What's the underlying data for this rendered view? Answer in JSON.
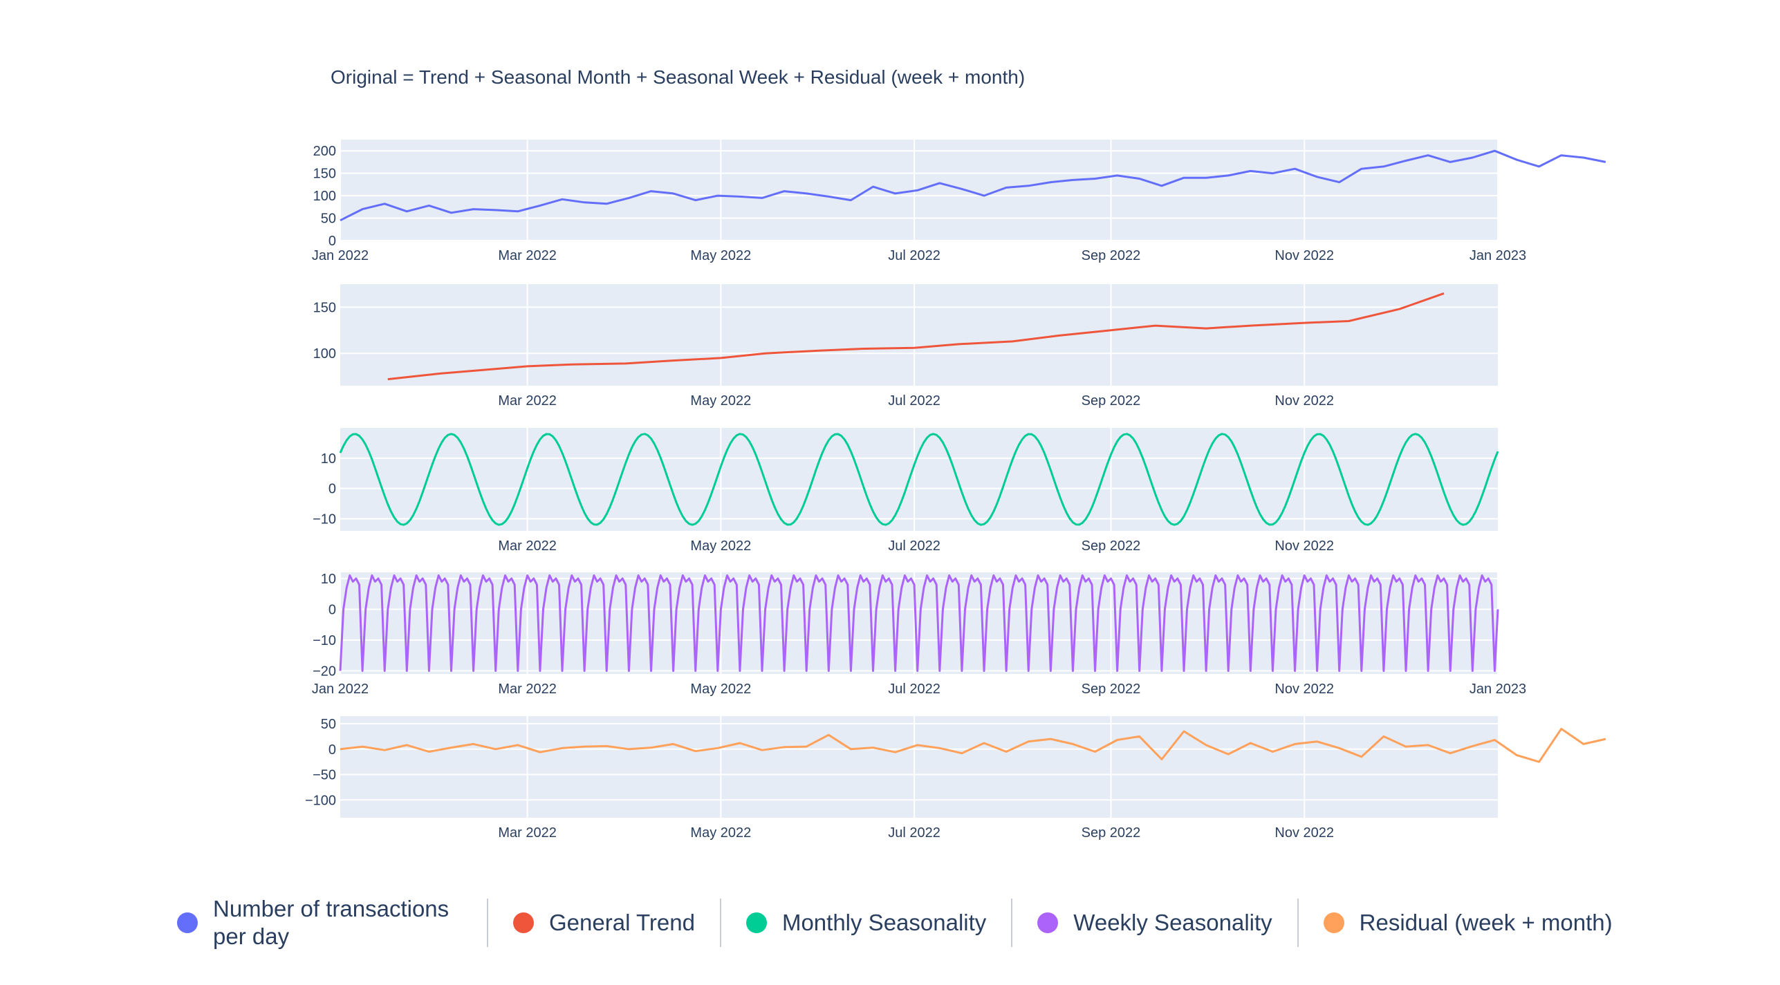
{
  "chart_data": {
    "type": "line",
    "title": "Original = Trend + Seasonal Month + Seasonal Week + Residual (week + month)",
    "x_range": [
      "2022-01-01",
      "2023-01-01"
    ],
    "legend": {
      "placement": "bottom",
      "items": [
        {
          "label": "Number of transactions per day",
          "color": "#636efa"
        },
        {
          "label": "General Trend",
          "color": "#ef553b"
        },
        {
          "label": "Monthly Seasonality",
          "color": "#00cc96"
        },
        {
          "label": "Weekly Seasonality",
          "color": "#ab63fa"
        },
        {
          "label": "Residual (week + month)",
          "color": "#ffa15a"
        }
      ]
    },
    "grid": true,
    "panels": [
      {
        "name": "Number of transactions per day",
        "color": "#636efa",
        "ylim": [
          0,
          225
        ],
        "yticks": [
          "0",
          "50",
          "100",
          "150",
          "200"
        ],
        "ytick_values": [
          0,
          50,
          100,
          150,
          200
        ],
        "xticks": [
          "Jan 2022",
          "Mar 2022",
          "May 2022",
          "Jul 2022",
          "Sep 2022",
          "Nov 2022",
          "Jan 2023"
        ],
        "xtick_dates": [
          "2022-01-01",
          "2022-03-01",
          "2022-05-01",
          "2022-07-01",
          "2022-09-01",
          "2022-11-01",
          "2023-01-01"
        ],
        "x_start": "2022-01-01",
        "x_step_days": 7,
        "values": [
          45,
          70,
          82,
          65,
          78,
          62,
          70,
          68,
          65,
          78,
          92,
          85,
          82,
          95,
          110,
          105,
          90,
          100,
          98,
          95,
          110,
          105,
          98,
          90,
          120,
          105,
          112,
          128,
          115,
          100,
          118,
          122,
          130,
          135,
          138,
          145,
          138,
          122,
          140,
          140,
          145,
          155,
          150,
          160,
          142,
          130,
          160,
          165,
          178,
          190,
          175,
          185,
          200,
          180,
          165,
          190,
          185,
          175
        ]
      },
      {
        "name": "General Trend",
        "color": "#ef553b",
        "ylim": [
          65,
          175
        ],
        "yticks": [
          "100",
          "150"
        ],
        "ytick_values": [
          100,
          150
        ],
        "xticks": [
          "Mar 2022",
          "May 2022",
          "Jul 2022",
          "Sep 2022",
          "Nov 2022"
        ],
        "xtick_dates": [
          "2022-03-01",
          "2022-05-01",
          "2022-07-01",
          "2022-09-01",
          "2022-11-01"
        ],
        "x": [
          "2022-01-16",
          "2022-02-01",
          "2022-02-15",
          "2022-03-01",
          "2022-03-15",
          "2022-04-01",
          "2022-04-15",
          "2022-05-01",
          "2022-05-15",
          "2022-06-01",
          "2022-06-15",
          "2022-07-01",
          "2022-07-15",
          "2022-08-01",
          "2022-08-15",
          "2022-09-01",
          "2022-09-15",
          "2022-10-01",
          "2022-10-15",
          "2022-11-01",
          "2022-11-15",
          "2022-12-01",
          "2022-12-15"
        ],
        "values": [
          72,
          78,
          82,
          86,
          88,
          89,
          92,
          95,
          100,
          103,
          105,
          106,
          110,
          113,
          119,
          125,
          130,
          127,
          130,
          133,
          135,
          148,
          165
        ]
      },
      {
        "name": "Monthly Seasonality",
        "color": "#00cc96",
        "ylim": [
          -14,
          20
        ],
        "yticks": [
          "−10",
          "0",
          "10"
        ],
        "ytick_values": [
          -10,
          0,
          10
        ],
        "xticks": [
          "Mar 2022",
          "May 2022",
          "Jul 2022",
          "Sep 2022",
          "Nov 2022"
        ],
        "xtick_dates": [
          "2022-03-01",
          "2022-05-01",
          "2022-07-01",
          "2022-09-01",
          "2022-11-01"
        ],
        "amplitude_range": [
          -12,
          18
        ],
        "period_days": 30.4,
        "cycles": 12
      },
      {
        "name": "Weekly Seasonality",
        "color": "#ab63fa",
        "ylim": [
          -21,
          12
        ],
        "yticks": [
          "−20",
          "−10",
          "0",
          "10"
        ],
        "ytick_values": [
          -20,
          -10,
          0,
          10
        ],
        "xticks": [
          "Jan 2022",
          "Mar 2022",
          "May 2022",
          "Jul 2022",
          "Sep 2022",
          "Nov 2022",
          "Jan 2023"
        ],
        "xtick_dates": [
          "2022-01-01",
          "2022-03-01",
          "2022-05-01",
          "2022-07-01",
          "2022-09-01",
          "2022-11-01",
          "2023-01-01"
        ],
        "weekly_pattern": [
          -20,
          0,
          7,
          11,
          9,
          10,
          8
        ],
        "period_days": 7
      },
      {
        "name": "Residual (week + month)",
        "color": "#ffa15a",
        "ylim": [
          -135,
          65
        ],
        "yticks": [
          "−100",
          "−50",
          "0",
          "50"
        ],
        "ytick_values": [
          -100,
          -50,
          0,
          50
        ],
        "xticks": [
          "Mar 2022",
          "May 2022",
          "Jul 2022",
          "Sep 2022",
          "Nov 2022"
        ],
        "xtick_dates": [
          "2022-03-01",
          "2022-05-01",
          "2022-07-01",
          "2022-09-01",
          "2022-11-01"
        ],
        "x_start": "2022-01-01",
        "x_step_days": 7,
        "values": [
          0,
          5,
          -2,
          8,
          -5,
          3,
          10,
          0,
          8,
          -6,
          2,
          5,
          6,
          0,
          3,
          10,
          -4,
          2,
          12,
          -2,
          4,
          5,
          28,
          0,
          3,
          -6,
          8,
          2,
          -8,
          12,
          -5,
          15,
          20,
          10,
          -5,
          18,
          25,
          -20,
          35,
          8,
          -10,
          12,
          -5,
          10,
          15,
          2,
          -15,
          25,
          5,
          8,
          -8,
          6,
          18,
          -12,
          -25,
          40,
          10,
          20
        ]
      }
    ]
  }
}
